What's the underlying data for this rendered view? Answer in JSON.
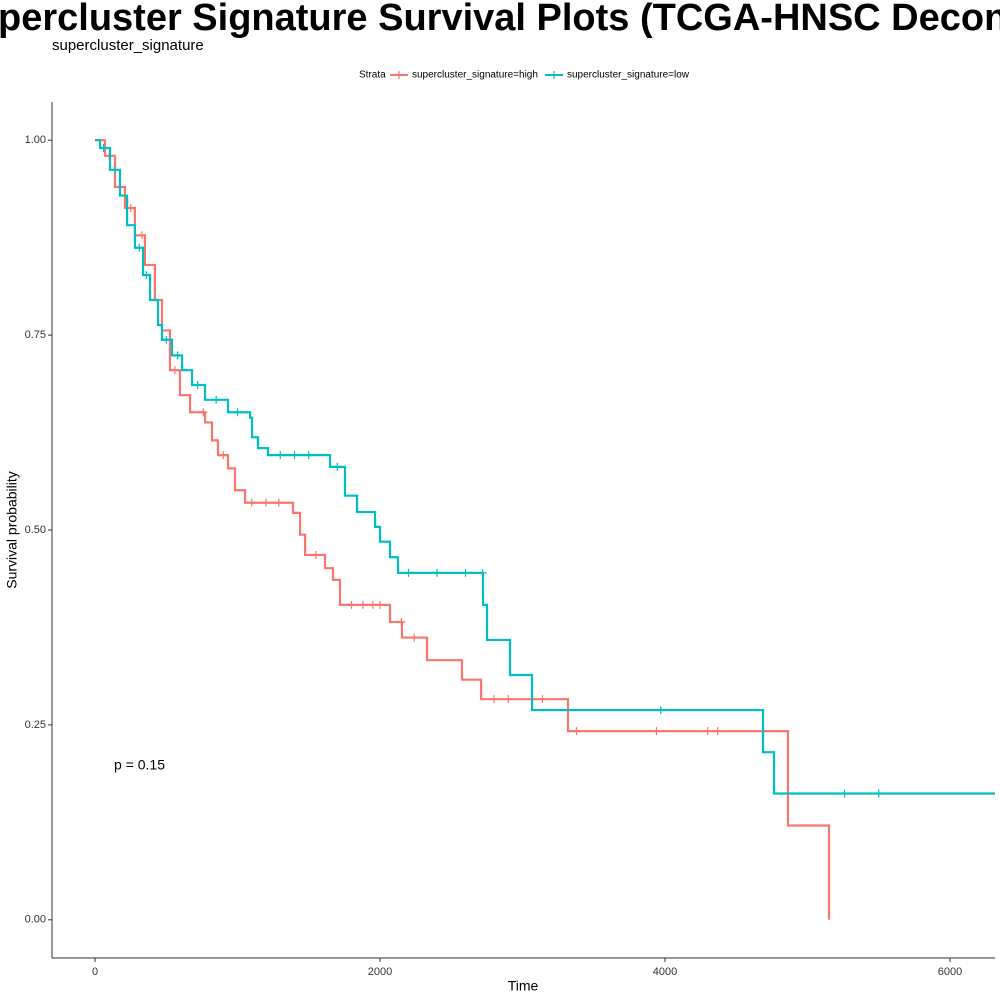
{
  "chart_data": {
    "type": "survival",
    "title": "percluster Signature Survival Plots (TCGA-HNSC Deconvolve",
    "subtitle": "supercluster_signature",
    "x_label": "Time",
    "y_label": "Survival probability",
    "legend_title": "Strata",
    "annotation": "p = 0.15",
    "xlim": [
      -302,
      6316
    ],
    "ylim": [
      -0.049,
      1.049
    ],
    "xticks": [
      0,
      2000,
      4000,
      6000
    ],
    "yticks": [
      {
        "value": 0,
        "label": "0.00"
      },
      {
        "value": 0.25,
        "label": "0.25"
      },
      {
        "value": 0.5,
        "label": "0.50"
      },
      {
        "value": 0.75,
        "label": "0.75"
      },
      {
        "value": 1,
        "label": "1.00"
      }
    ],
    "series": [
      {
        "name": "supercluster_signature=high",
        "color": "#F8766D",
        "x": [
          0,
          70,
          140,
          210,
          280,
          350,
          420,
          470,
          526,
          596,
          667,
          772,
          821,
          863,
          933,
          982,
          1053,
          1389,
          1439,
          1474,
          1614,
          1670,
          1719,
          2070,
          2154,
          2330,
          2575,
          2709,
          3319,
          4863,
          5151
        ],
        "values": [
          1.0,
          0.98,
          0.94,
          0.913,
          0.878,
          0.84,
          0.795,
          0.756,
          0.705,
          0.673,
          0.651,
          0.638,
          0.615,
          0.596,
          0.579,
          0.551,
          0.535,
          0.522,
          0.494,
          0.468,
          0.451,
          0.436,
          0.404,
          0.382,
          0.362,
          0.333,
          0.308,
          0.283,
          0.242,
          0.121,
          0.0
        ],
        "censor_x": [
          100,
          250,
          330,
          560,
          760,
          900,
          1100,
          1200,
          1290,
          1550,
          1800,
          1880,
          1950,
          2000,
          2150,
          2240,
          2800,
          2900,
          3140,
          3380,
          3940,
          4300,
          4370
        ],
        "censor_values": [
          0.98,
          0.913,
          0.878,
          0.705,
          0.651,
          0.596,
          0.535,
          0.535,
          0.535,
          0.468,
          0.404,
          0.404,
          0.404,
          0.404,
          0.382,
          0.362,
          0.283,
          0.283,
          0.283,
          0.242,
          0.242,
          0.242,
          0.242
        ]
      },
      {
        "name": "supercluster_signature=low",
        "color": "#00BFC4",
        "x": [
          0,
          35,
          105,
          175,
          225,
          280,
          337,
          386,
          442,
          470,
          540,
          611,
          681,
          772,
          933,
          1088,
          1102,
          1144,
          1214,
          1649,
          1754,
          1839,
          1965,
          2000,
          2070,
          2126,
          2723,
          2751,
          2912,
          3067,
          4688,
          4765
        ],
        "values": [
          1.0,
          0.99,
          0.962,
          0.929,
          0.891,
          0.862,
          0.827,
          0.795,
          0.763,
          0.744,
          0.724,
          0.705,
          0.686,
          0.667,
          0.651,
          0.644,
          0.619,
          0.605,
          0.596,
          0.581,
          0.544,
          0.523,
          0.504,
          0.485,
          0.465,
          0.445,
          0.404,
          0.359,
          0.314,
          0.269,
          0.215,
          0.162
        ],
        "censor_x": [
          60,
          140,
          310,
          360,
          500,
          580,
          720,
          850,
          1000,
          1300,
          1400,
          1500,
          1700,
          2200,
          2400,
          2600,
          2720,
          3970,
          5260,
          5500
        ],
        "censor_values": [
          0.99,
          0.962,
          0.862,
          0.827,
          0.744,
          0.724,
          0.686,
          0.667,
          0.651,
          0.596,
          0.596,
          0.596,
          0.581,
          0.445,
          0.445,
          0.445,
          0.445,
          0.269,
          0.162,
          0.162
        ]
      }
    ]
  }
}
